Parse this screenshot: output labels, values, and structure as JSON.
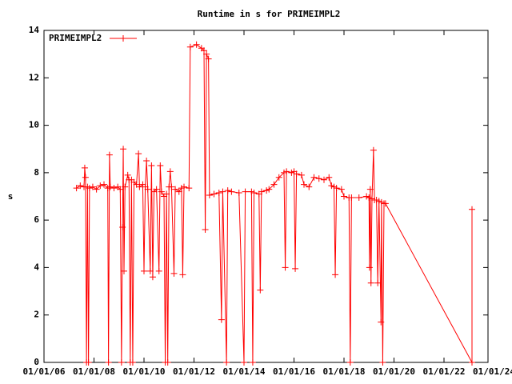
{
  "chart_data": {
    "type": "line",
    "title": "Runtime in s for PRIMEIMPL2",
    "y_label": "s",
    "xlim": [
      2006,
      2023.76
    ],
    "xticks": [
      {
        "value": 2006,
        "label": "01/01/06"
      },
      {
        "value": 2008,
        "label": "01/01/08"
      },
      {
        "value": 2010,
        "label": "01/01/10"
      },
      {
        "value": 2012,
        "label": "01/01/12"
      },
      {
        "value": 2014,
        "label": "01/01/14"
      },
      {
        "value": 2016,
        "label": "01/01/16"
      },
      {
        "value": 2018,
        "label": "01/01/18"
      },
      {
        "value": 2020,
        "label": "01/01/20"
      },
      {
        "value": 2022,
        "label": "01/01/22"
      },
      {
        "value": 2024,
        "label": "01/01/24"
      }
    ],
    "ylim": [
      0,
      14
    ],
    "yticks": [
      0,
      2,
      4,
      6,
      8,
      10,
      12,
      14
    ],
    "legend": "top-left",
    "series": [
      {
        "name": "PRIMEIMPL2",
        "color": "#ff0000",
        "x": [
          2007.3,
          2007.45,
          2007.6,
          2007.63,
          2007.66,
          2007.7,
          2007.74,
          2007.78,
          2007.82,
          2007.95,
          2008.1,
          2008.25,
          2008.4,
          2008.55,
          2008.58,
          2008.62,
          2008.65,
          2008.8,
          2008.95,
          2009.05,
          2009.1,
          2009.14,
          2009.17,
          2009.2,
          2009.24,
          2009.35,
          2009.4,
          2009.45,
          2009.5,
          2009.55,
          2009.6,
          2009.7,
          2009.78,
          2009.82,
          2009.95,
          2010.0,
          2010.05,
          2010.1,
          2010.15,
          2010.25,
          2010.3,
          2010.35,
          2010.4,
          2010.5,
          2010.6,
          2010.65,
          2010.7,
          2010.8,
          2010.85,
          2010.9,
          2010.95,
          2011.0,
          2011.05,
          2011.1,
          2011.2,
          2011.25,
          2011.4,
          2011.5,
          2011.55,
          2011.6,
          2011.8,
          2011.85,
          2012.1,
          2012.3,
          2012.4,
          2012.45,
          2012.5,
          2012.58,
          2012.62,
          2012.8,
          2013.0,
          2013.1,
          2013.15,
          2013.3,
          2013.35,
          2013.5,
          2013.8,
          2014.0,
          2014.05,
          2014.3,
          2014.35,
          2014.4,
          2014.6,
          2014.65,
          2014.7,
          2014.9,
          2015.0,
          2015.2,
          2015.4,
          2015.6,
          2015.65,
          2015.7,
          2015.9,
          2016.0,
          2016.05,
          2016.1,
          2016.3,
          2016.4,
          2016.6,
          2016.8,
          2017.0,
          2017.2,
          2017.4,
          2017.5,
          2017.6,
          2017.65,
          2017.7,
          2017.9,
          2018.0,
          2018.2,
          2018.25,
          2018.3,
          2018.6,
          2018.9,
          2019.0,
          2019.02,
          2019.05,
          2019.08,
          2019.12,
          2019.18,
          2019.22,
          2019.3,
          2019.35,
          2019.4,
          2019.48,
          2019.5,
          2019.55,
          2019.6,
          2019.66,
          2023.12,
          2023.12
        ],
        "values": [
          7.35,
          7.45,
          7.4,
          8.2,
          7.8,
          0,
          7.4,
          0,
          7.35,
          7.4,
          7.3,
          7.45,
          7.5,
          7.35,
          0,
          8.75,
          7.4,
          7.35,
          7.4,
          7.3,
          0,
          5.7,
          9.0,
          3.85,
          7.4,
          7.9,
          7.7,
          0,
          7.7,
          0,
          7.6,
          7.5,
          8.8,
          7.4,
          7.5,
          3.85,
          7.4,
          8.5,
          7.3,
          3.85,
          8.3,
          3.6,
          7.2,
          7.3,
          3.85,
          8.3,
          7.2,
          7.0,
          0,
          7.1,
          0,
          7.4,
          8.05,
          7.4,
          3.75,
          7.3,
          7.2,
          7.35,
          3.7,
          7.4,
          7.35,
          13.3,
          13.4,
          13.25,
          13.15,
          5.6,
          13.0,
          12.8,
          7.05,
          7.1,
          7.15,
          1.8,
          7.2,
          0,
          7.25,
          7.2,
          7.15,
          0,
          7.2,
          7.2,
          0,
          7.15,
          7.1,
          3.05,
          7.2,
          7.25,
          7.3,
          7.5,
          7.8,
          8.0,
          4.0,
          8.05,
          8.0,
          8.05,
          3.95,
          7.95,
          7.9,
          7.5,
          7.4,
          7.8,
          7.75,
          7.7,
          7.8,
          7.45,
          7.4,
          3.7,
          7.35,
          7.3,
          7.0,
          6.95,
          0,
          6.95,
          6.95,
          7.0,
          6.95,
          4.0,
          7.3,
          3.35,
          6.9,
          8.95,
          6.85,
          6.85,
          3.35,
          6.8,
          1.7,
          6.75,
          0,
          6.7,
          6.7,
          0,
          6.45
        ]
      }
    ]
  }
}
